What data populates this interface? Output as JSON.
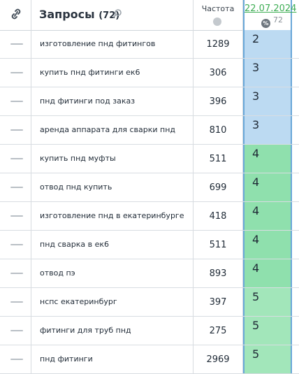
{
  "header": {
    "queries_label": "Запросы",
    "queries_count": "(72)",
    "frequency_label": "Частота",
    "date_label": "22.07.2024",
    "date_count": "72",
    "pct_symbol": "%"
  },
  "colors": {
    "pos_low": "#bcdaf2",
    "pos_mid": "#8fe0ad",
    "pos_high": "#a2e6ba",
    "date_link": "#3fae55",
    "column_border": "#69a7d8"
  },
  "rows": [
    {
      "query": "изготовление пнд фитингов",
      "frequency": "1289",
      "position": "2"
    },
    {
      "query": "купить пнд фитинги ек6",
      "frequency": "306",
      "position": "3"
    },
    {
      "query": "пнд фитинги под заказ",
      "frequency": "396",
      "position": "3"
    },
    {
      "query": "аренда аппарата для сварки пнд",
      "frequency": "810",
      "position": "3"
    },
    {
      "query": "купить пнд муфты",
      "frequency": "511",
      "position": "4"
    },
    {
      "query": "отвод пнд купить",
      "frequency": "699",
      "position": "4"
    },
    {
      "query": "изготовление пнд в екатеринбурге",
      "frequency": "418",
      "position": "4"
    },
    {
      "query": "пнд сварка в ек6",
      "frequency": "511",
      "position": "4"
    },
    {
      "query": "отвод пэ",
      "frequency": "893",
      "position": "4"
    },
    {
      "query": "нспс екатеринбург",
      "frequency": "397",
      "position": "5"
    },
    {
      "query": "фитинги для труб пнд",
      "frequency": "275",
      "position": "5"
    },
    {
      "query": "пнд фитинги",
      "frequency": "2969",
      "position": "5"
    }
  ]
}
